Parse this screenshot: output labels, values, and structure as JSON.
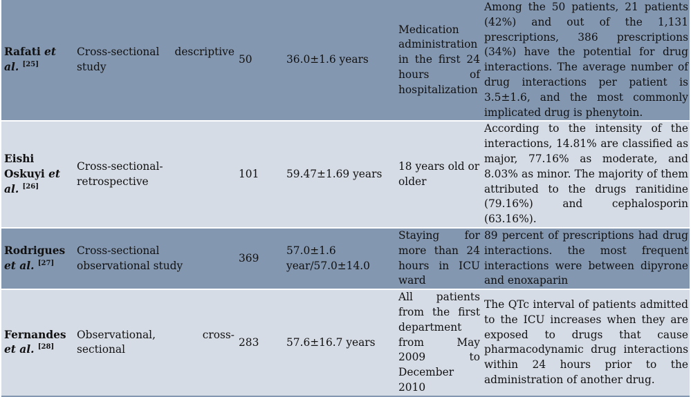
{
  "rows": [
    {
      "author_name": "Rafati",
      "author_etal": "et al.",
      "ref": "[25]",
      "design": "Cross-sectional descriptive study",
      "sample": "50",
      "age": "36.0±1.6 years",
      "population": "Medication administration in the first 24 hours of hospitalization",
      "result": "Among the 50 patients, 21 patients (42%) and out of the 1,131 prescriptions, 386 prescriptions (34%) have the potential for drug interactions. The average number of drug interactions per patient is 3.5±1.6, and the most commonly implicated drug is phenytoin."
    },
    {
      "author_name": "Eishi Oskuyi",
      "author_etal": "et al.",
      "ref": "[26]",
      "design": "Cross-sectional-retrospective",
      "sample": "101",
      "age": "59.47±1.69 years",
      "population": "18 years old or older",
      "result": "According to the intensity of the interactions, 14.81% are classified as major, 77.16% as moderate, and 8.03% as minor. The majority of them attributed to the drugs ranitidine (79.16%) and cephalosporin (63.16%)."
    },
    {
      "author_name": "Rodrigues",
      "author_etal": "et al.",
      "ref": "[27]",
      "design": "Cross-sectional observational study",
      "sample": "369",
      "age": "57.0±1.6 year/57.0±14.0",
      "population": "Staying for more than 24 hours in ICU ward",
      "result": "89 percent of prescriptions had drug interactions. the most frequent interactions were between dipyrone and enoxaparin"
    },
    {
      "author_name": "Fernandes",
      "author_etal": "et al.",
      "ref": "[28]",
      "design": "Observational, cross-sectional",
      "sample": "283",
      "age": "57.6±16.7 years",
      "population": "All patients from the first department from May 2009 to December 2010",
      "result": "The QTc interval of patients admitted to the ICU increases when they are exposed to drugs that cause pharmacodynamic drug interactions within 24 hours prior to the administration of another drug."
    }
  ],
  "colors": {
    "dark_row": "#8497b0",
    "light_row": "#d6dce5"
  }
}
